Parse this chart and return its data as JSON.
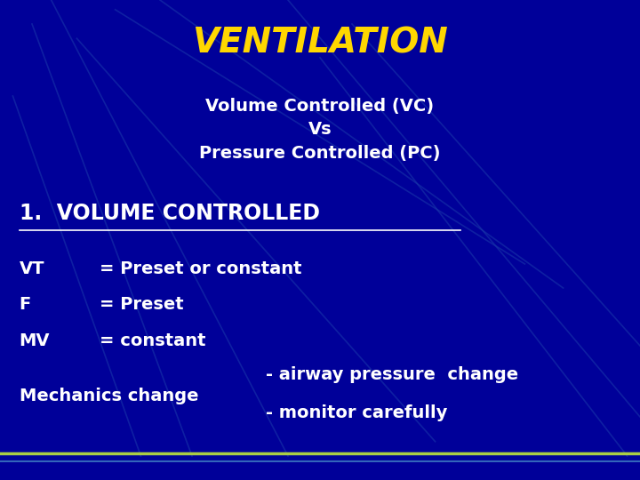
{
  "title": "VENTILATION",
  "title_color": "#FFD700",
  "title_fontsize": 28,
  "subtitle": "Volume Controlled (VC)\nVs\nPressure Controlled (PC)",
  "subtitle_color": "#FFFFFF",
  "subtitle_fontsize": 14,
  "section_header": "1.  VOLUME CONTROLLED",
  "section_header_color": "#FFFFFF",
  "section_header_fontsize": 17,
  "body_lines": [
    [
      "VT",
      "= Preset or constant"
    ],
    [
      "F",
      "= Preset"
    ],
    [
      "MV",
      "= constant"
    ]
  ],
  "body_color": "#FFFFFF",
  "body_fontsize": 14,
  "mechanics_left": "Mechanics change",
  "mechanics_right_line1": "- airway pressure  change",
  "mechanics_right_line2": "- monitor carefully",
  "mechanics_color": "#FFFFFF",
  "mechanics_fontsize": 14,
  "bg_color": "#000099",
  "footer_line_color": "#AACC44",
  "footer_line2_color": "#3366BB",
  "diag_lines": [
    [
      [
        0.05,
        0.3
      ],
      [
        0.95,
        0.05
      ]
    ],
    [
      [
        0.08,
        0.45
      ],
      [
        1.0,
        0.05
      ]
    ],
    [
      [
        0.02,
        0.22
      ],
      [
        0.8,
        0.05
      ]
    ],
    [
      [
        0.45,
        1.02
      ],
      [
        1.0,
        0.1
      ]
    ],
    [
      [
        0.55,
        1.02
      ],
      [
        0.95,
        0.25
      ]
    ],
    [
      [
        0.5,
        0.98
      ],
      [
        0.88,
        0.05
      ]
    ],
    [
      [
        0.25,
        0.88
      ],
      [
        1.0,
        0.4
      ]
    ],
    [
      [
        0.18,
        0.82
      ],
      [
        0.98,
        0.45
      ]
    ],
    [
      [
        0.12,
        0.68
      ],
      [
        0.92,
        0.08
      ]
    ]
  ]
}
